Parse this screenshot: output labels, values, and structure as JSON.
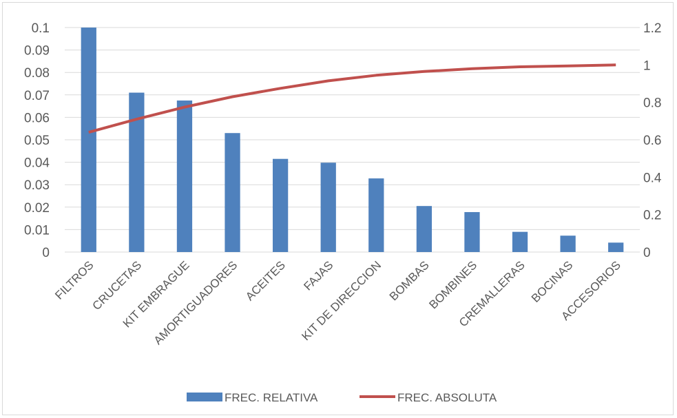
{
  "chart_data": {
    "type": "bar+line",
    "categories": [
      "FILTROS",
      "CRUCETAS",
      "KIT EMBRAGUE",
      "AMORTIGUADORES",
      "ACEITES",
      "FAJAS",
      "KIT DE DIRECCION",
      "BOMBAS",
      "BOMBINES",
      "CREMALLERAS",
      "BOCINAS",
      "ACCESORIOS"
    ],
    "series": [
      {
        "name": "FREC. RELATIVA",
        "type": "bar",
        "axis": "left",
        "color": "#4f81bd",
        "values": [
          0.1,
          0.071,
          0.0675,
          0.053,
          0.0415,
          0.0398,
          0.0328,
          0.0205,
          0.0178,
          0.009,
          0.0073,
          0.0042
        ]
      },
      {
        "name": "FREC. ABSOLUTA",
        "type": "line",
        "axis": "right",
        "color": "#c0504d",
        "values": [
          0.64,
          0.71,
          0.775,
          0.83,
          0.875,
          0.915,
          0.945,
          0.965,
          0.98,
          0.99,
          0.995,
          1.0
        ]
      }
    ],
    "y_left": {
      "min": 0,
      "max": 0.1,
      "ticks": [
        "0",
        "0.01",
        "0.02",
        "0.03",
        "0.04",
        "0.05",
        "0.06",
        "0.07",
        "0.08",
        "0.09",
        "0.1"
      ]
    },
    "y_right": {
      "min": 0,
      "max": 1.2,
      "ticks": [
        "0",
        "0.2",
        "0.4",
        "0.6",
        "0.8",
        "1",
        "1.2"
      ]
    },
    "grid": true,
    "legend": "bottom"
  }
}
